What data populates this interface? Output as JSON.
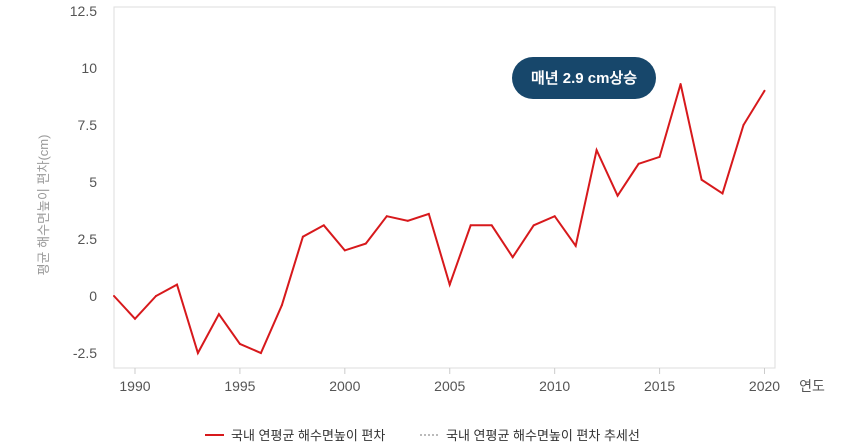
{
  "chart_data": {
    "type": "line",
    "xlabel": "연도",
    "ylabel": "평균 해수면높이 편차(cm)",
    "xlim": [
      1989,
      2020.5
    ],
    "ylim": [
      -2.5,
      12.5
    ],
    "yticks": [
      "-2.5",
      "0",
      "2.5",
      "5",
      "7.5",
      "10",
      "12.5"
    ],
    "xticks": [
      "1990",
      "1995",
      "2000",
      "2005",
      "2010",
      "2015",
      "2020"
    ],
    "grid": false,
    "legend_position": "bottom",
    "annotation": "매년 2.9 cm상승",
    "series": [
      {
        "name": "국내 연평균 해수면높이 편차",
        "color": "#d7191c",
        "x": [
          1989,
          1990,
          1991,
          1992,
          1993,
          1994,
          1995,
          1996,
          1997,
          1998,
          1999,
          2000,
          2001,
          2002,
          2003,
          2004,
          2005,
          2006,
          2007,
          2008,
          2009,
          2010,
          2011,
          2012,
          2013,
          2014,
          2015,
          2016,
          2017,
          2018,
          2019,
          2020
        ],
        "values": [
          0,
          -1,
          0,
          0.5,
          -2.5,
          -0.8,
          -2.1,
          -2.5,
          -0.4,
          2.6,
          3.1,
          2,
          2.3,
          3.5,
          3.3,
          3.6,
          0.5,
          3.1,
          3.1,
          1.7,
          3.1,
          3.5,
          2.2,
          6.4,
          4.4,
          5.8,
          6.1,
          9.3,
          5.1,
          4.5,
          7.5,
          9
        ]
      }
    ],
    "trend_legend": "국내 연평균 해수면높이 편차 추세선",
    "trend_color": "#bbbbbb"
  },
  "colors": {
    "callout_bg": "#17476b",
    "axis": "#dddddd"
  }
}
